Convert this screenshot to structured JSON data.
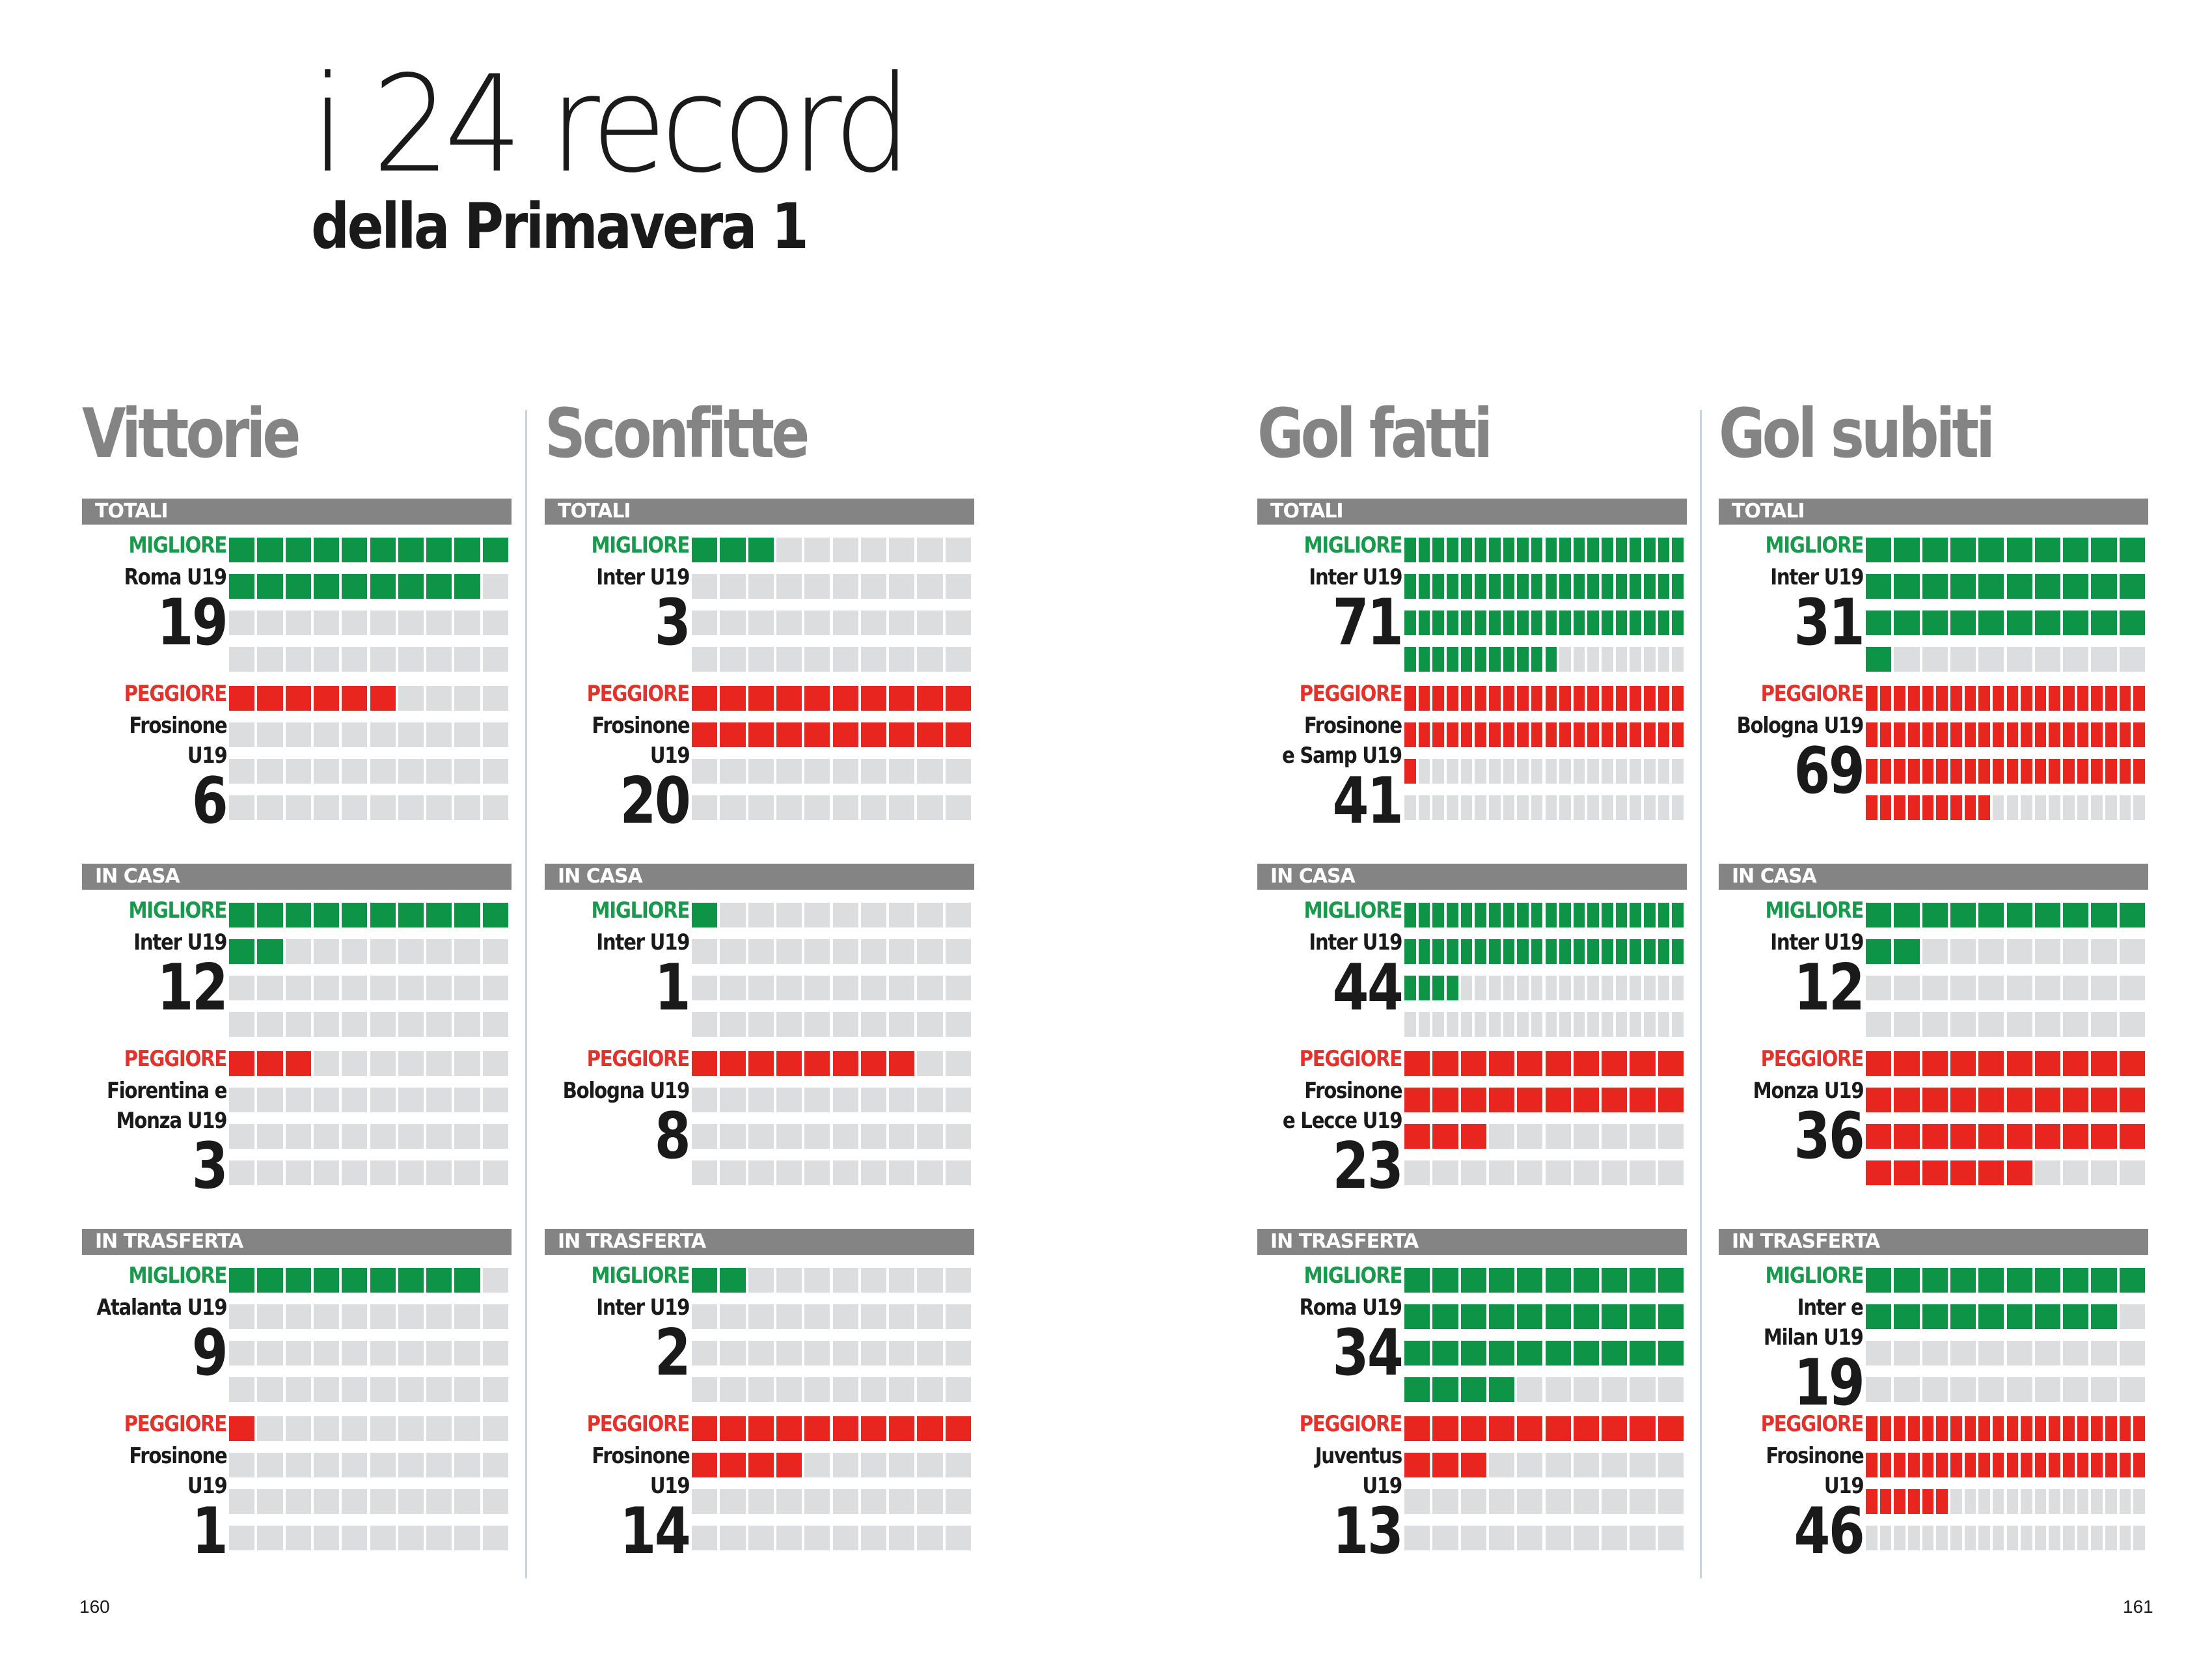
{
  "header": {
    "title": "i 24 record",
    "subtitle": "della Primavera 1"
  },
  "colors": {
    "good": "#0d9447",
    "bad": "#e8251f",
    "empty": "#dcddde",
    "section_bar": "#848484",
    "good_label": "#179a4b",
    "bad_label": "#e3312b"
  },
  "labels": {
    "best": "MIGLIORE",
    "worst": "PEGGIORE"
  },
  "page_numbers": {
    "left": "160",
    "right": "161"
  },
  "chart_data": [
    {
      "type": "table",
      "title": "Vittorie",
      "sections": [
        {
          "name": "TOTALI",
          "best": {
            "team": "Roma U19",
            "value": 19
          },
          "worst": {
            "team": "Frosinone\nU19",
            "value": 6
          }
        },
        {
          "name": "IN CASA",
          "best": {
            "team": "Inter U19",
            "value": 12
          },
          "worst": {
            "team": "Fiorentina e\nMonza U19",
            "value": 3
          }
        },
        {
          "name": "IN TRASFERTA",
          "best": {
            "team": "Atalanta U19",
            "value": 9
          },
          "worst": {
            "team": "Frosinone\nU19",
            "value": 1
          }
        }
      ]
    },
    {
      "type": "table",
      "title": "Sconfitte",
      "sections": [
        {
          "name": "TOTALI",
          "best": {
            "team": "Inter U19",
            "value": 3
          },
          "worst": {
            "team": "Frosinone\nU19",
            "value": 20
          }
        },
        {
          "name": "IN CASA",
          "best": {
            "team": "Inter U19",
            "value": 1
          },
          "worst": {
            "team": "Bologna U19",
            "value": 8
          }
        },
        {
          "name": "IN TRASFERTA",
          "best": {
            "team": "Inter U19",
            "value": 2
          },
          "worst": {
            "team": "Frosinone\nU19",
            "value": 14
          }
        }
      ]
    },
    {
      "type": "table",
      "title": "Gol fatti",
      "sections": [
        {
          "name": "TOTALI",
          "best": {
            "team": "Inter U19",
            "value": 71
          },
          "worst": {
            "team": "Frosinone\ne Samp U19",
            "value": 41
          }
        },
        {
          "name": "IN CASA",
          "best": {
            "team": "Inter U19",
            "value": 44
          },
          "worst": {
            "team": "Frosinone\ne Lecce U19",
            "value": 23
          }
        },
        {
          "name": "IN TRASFERTA",
          "best": {
            "team": "Roma U19",
            "value": 34
          },
          "worst": {
            "team": "Juventus\nU19",
            "value": 13
          }
        }
      ]
    },
    {
      "type": "table",
      "title": "Gol subiti",
      "sections": [
        {
          "name": "TOTALI",
          "best": {
            "team": "Inter U19",
            "value": 31
          },
          "worst": {
            "team": "Bologna U19",
            "value": 69
          }
        },
        {
          "name": "IN CASA",
          "best": {
            "team": "Inter U19",
            "value": 12
          },
          "worst": {
            "team": "Monza U19",
            "value": 36
          }
        },
        {
          "name": "IN TRASFERTA",
          "best": {
            "team": "Inter e\nMilan U19",
            "value": 19
          },
          "worst": {
            "team": "Frosinone\nU19",
            "value": 46
          }
        }
      ]
    }
  ]
}
